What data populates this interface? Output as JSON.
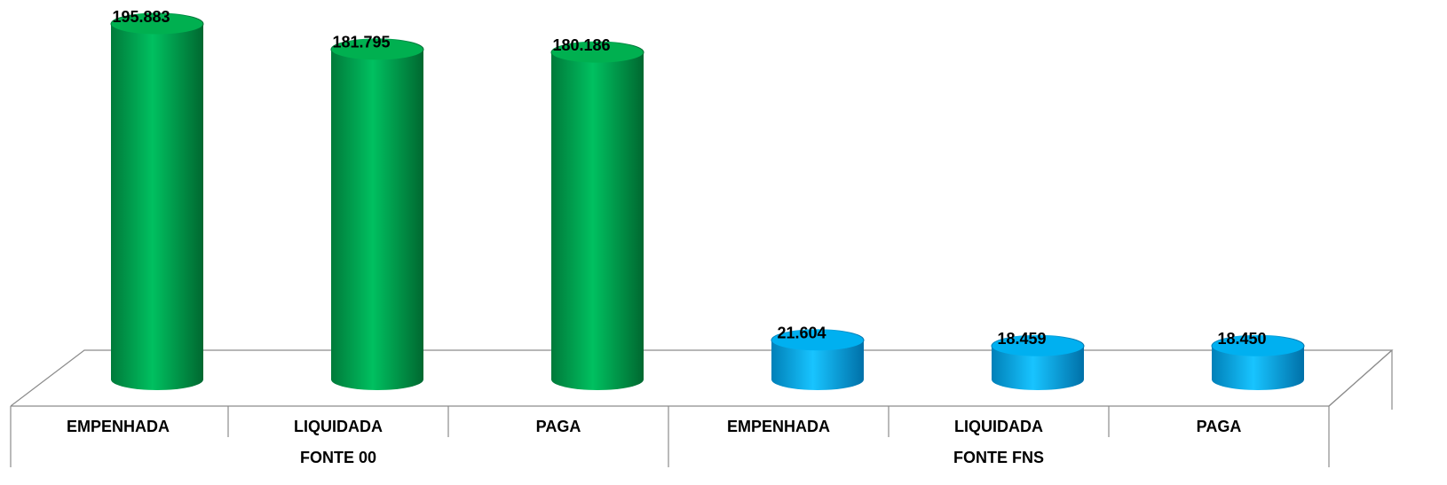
{
  "chart_data": {
    "type": "bar3d",
    "groups": [
      {
        "label": "FONTE 00",
        "color": "#00b050",
        "categories": [
          "EMPENHADA",
          "LIQUIDADA",
          "PAGA"
        ],
        "values": [
          195883,
          181795,
          180186
        ],
        "value_labels": [
          "195.883",
          "181.795",
          "180.186"
        ]
      },
      {
        "label": "FONTE FNS",
        "color": "#00b0f0",
        "categories": [
          "EMPENHADA",
          "LIQUIDADA",
          "PAGA"
        ],
        "values": [
          21604,
          18459,
          18450
        ],
        "value_labels": [
          "21.604",
          "18.459",
          "18.450"
        ]
      }
    ]
  }
}
